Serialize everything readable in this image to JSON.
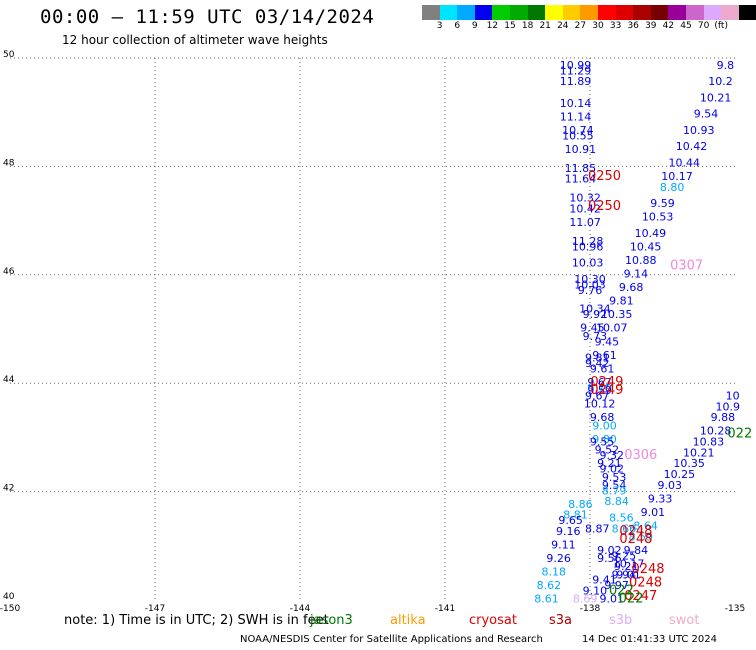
{
  "header": {
    "title": "00:00 – 11:59 UTC 03/14/2024",
    "subtitle": "12 hour collection of altimeter wave heights"
  },
  "colorbar": {
    "colors": [
      "#808080",
      "#00e5ff",
      "#00aaff",
      "#0000ee",
      "#00cc00",
      "#00aa00",
      "#007700",
      "#ffff00",
      "#ffcc00",
      "#ff9900",
      "#ff0000",
      "#dd0000",
      "#aa0000",
      "#770000",
      "#990099",
      "#cc66cc",
      "#ddaaff",
      "#eeaacc",
      "#000000"
    ],
    "labels": [
      "3",
      "6",
      "9",
      "12",
      "15",
      "18",
      "21",
      "24",
      "27",
      "30",
      "33",
      "36",
      "39",
      "42",
      "45",
      "70",
      "(ft)"
    ]
  },
  "footer": {
    "note": "note:  1) Time is in UTC;  2) SWH is in feet",
    "satellites": [
      {
        "name": "jason3",
        "color": "#007700"
      },
      {
        "name": "altika",
        "color": "#ff9900"
      },
      {
        "name": "cryosat",
        "color": "#dd0000"
      },
      {
        "name": "s3a",
        "color": "#aa0000"
      },
      {
        "name": "s3b",
        "color": "#ddaaff"
      },
      {
        "name": "swot",
        "color": "#eeaacc"
      }
    ],
    "credit": "NOAA/NESDIS Center for Satellite Applications and Research",
    "timestamp": "14 Dec 01:41:33 UTC 2024"
  },
  "chart_data": {
    "type": "scatter",
    "xlim": [
      -150,
      -135
    ],
    "ylim": [
      40,
      50
    ],
    "x_ticks": [
      -150,
      -147,
      -144,
      -141,
      -138,
      -135
    ],
    "x_tick_labels": [
      "-150",
      "-147",
      "-144",
      "-141",
      "-138",
      "-135"
    ],
    "y_ticks": [
      40,
      42,
      44,
      46,
      48,
      50
    ],
    "y_tick_labels": [
      "40",
      "42",
      "44",
      "46",
      "48",
      "50"
    ],
    "grid": true,
    "value_labels": [
      {
        "lon": -138.3,
        "lat": 49.8,
        "text": "10.99",
        "color": "#0000ee"
      },
      {
        "lon": -138.3,
        "lat": 49.7,
        "text": "11.29",
        "color": "#0000ee"
      },
      {
        "lon": -138.3,
        "lat": 49.5,
        "text": "11.89",
        "color": "#0000ee"
      },
      {
        "lon": -138.3,
        "lat": 49.1,
        "text": "10.14",
        "color": "#0000ee"
      },
      {
        "lon": -138.3,
        "lat": 48.85,
        "text": "11.14",
        "color": "#0000ee"
      },
      {
        "lon": -138.25,
        "lat": 48.6,
        "text": "10.74",
        "color": "#0000ee"
      },
      {
        "lon": -138.25,
        "lat": 48.5,
        "text": "10.55",
        "color": "#0000ee"
      },
      {
        "lon": -138.2,
        "lat": 48.25,
        "text": "10.91",
        "color": "#0000ee"
      },
      {
        "lon": -138.2,
        "lat": 47.9,
        "text": "11.85",
        "color": "#0000ee"
      },
      {
        "lon": -138.2,
        "lat": 47.7,
        "text": "11.64",
        "color": "#0000ee"
      },
      {
        "lon": -138.1,
        "lat": 47.35,
        "text": "10.32",
        "color": "#0000ee"
      },
      {
        "lon": -138.1,
        "lat": 47.15,
        "text": "10.42",
        "color": "#0000ee"
      },
      {
        "lon": -138.1,
        "lat": 46.9,
        "text": "11.07",
        "color": "#0000ee"
      },
      {
        "lon": -138.05,
        "lat": 46.55,
        "text": "11.28",
        "color": "#0000ee"
      },
      {
        "lon": -138.05,
        "lat": 46.45,
        "text": "10.96",
        "color": "#0000ee"
      },
      {
        "lon": -138.05,
        "lat": 46.15,
        "text": "10.03",
        "color": "#0000ee"
      },
      {
        "lon": -138.0,
        "lat": 45.85,
        "text": "10.30",
        "color": "#0000ee"
      },
      {
        "lon": -138.0,
        "lat": 45.75,
        "text": "10.03",
        "color": "#0000ee"
      },
      {
        "lon": -138.0,
        "lat": 45.65,
        "text": "9.76",
        "color": "#0000ee"
      },
      {
        "lon": -137.9,
        "lat": 45.3,
        "text": "10.34",
        "color": "#0000ee"
      },
      {
        "lon": -137.9,
        "lat": 45.2,
        "text": "9.92",
        "color": "#0000ee"
      },
      {
        "lon": -137.95,
        "lat": 44.95,
        "text": "9.45",
        "color": "#0000ee"
      },
      {
        "lon": -137.9,
        "lat": 44.8,
        "text": "9.73",
        "color": "#0000ee"
      },
      {
        "lon": -137.85,
        "lat": 44.4,
        "text": "9.81",
        "color": "#0000ee"
      },
      {
        "lon": -137.85,
        "lat": 44.3,
        "text": "9.42",
        "color": "#0000ee"
      },
      {
        "lon": -137.8,
        "lat": 43.85,
        "text": "9.79",
        "color": "#00aaff"
      },
      {
        "lon": -137.8,
        "lat": 43.8,
        "text": "9.59",
        "color": "#0000ee"
      },
      {
        "lon": -137.75,
        "lat": 43.3,
        "text": "9.68",
        "color": "#0000ee"
      },
      {
        "lon": -137.7,
        "lat": 43.15,
        "text": "9.00",
        "color": "#00aaff"
      },
      {
        "lon": -137.7,
        "lat": 42.9,
        "text": "9.80",
        "color": "#00aaff"
      },
      {
        "lon": -137.65,
        "lat": 42.7,
        "text": "9.52",
        "color": "#0000ee"
      },
      {
        "lon": -137.6,
        "lat": 42.45,
        "text": "9.21",
        "color": "#0000ee"
      },
      {
        "lon": -137.55,
        "lat": 42.35,
        "text": "9.02",
        "color": "#0000ee"
      },
      {
        "lon": -137.5,
        "lat": 42.2,
        "text": "9.53",
        "color": "#0000ee"
      },
      {
        "lon": -137.5,
        "lat": 42.05,
        "text": "9.54",
        "color": "#0000ee"
      },
      {
        "lon": -137.5,
        "lat": 41.95,
        "text": "8.79",
        "color": "#00aaff"
      },
      {
        "lon": -137.45,
        "lat": 41.75,
        "text": "8.84",
        "color": "#00aaff"
      },
      {
        "lon": -137.35,
        "lat": 41.45,
        "text": "8.56",
        "color": "#00aaff"
      },
      {
        "lon": -137.3,
        "lat": 41.25,
        "text": "8.66",
        "color": "#00aaff"
      },
      {
        "lon": -137.3,
        "lat": 40.75,
        "text": "9.25",
        "color": "#0000ee"
      },
      {
        "lon": -137.25,
        "lat": 40.55,
        "text": "9.21",
        "color": "#0000ee"
      },
      {
        "lon": -137.2,
        "lat": 40.4,
        "text": "9.01",
        "color": "#0000ee"
      },
      {
        "lon": -138.2,
        "lat": 41.7,
        "text": "8.86",
        "color": "#00aaff"
      },
      {
        "lon": -138.3,
        "lat": 41.5,
        "text": "8.81",
        "color": "#00aaff"
      },
      {
        "lon": -138.4,
        "lat": 41.4,
        "text": "9.65",
        "color": "#0000ee"
      },
      {
        "lon": -138.45,
        "lat": 41.2,
        "text": "9.16",
        "color": "#0000ee"
      },
      {
        "lon": -138.55,
        "lat": 40.95,
        "text": "9.11",
        "color": "#0000ee"
      },
      {
        "lon": -138.65,
        "lat": 40.7,
        "text": "9.26",
        "color": "#0000ee"
      },
      {
        "lon": -138.75,
        "lat": 40.45,
        "text": "8.18",
        "color": "#00aaff"
      },
      {
        "lon": -138.85,
        "lat": 40.2,
        "text": "8.62",
        "color": "#00aaff"
      },
      {
        "lon": -138.9,
        "lat": 39.95,
        "text": "8.61",
        "color": "#00aaff"
      },
      {
        "lon": -137.85,
        "lat": 41.25,
        "text": "8.87",
        "color": "#0000ee"
      },
      {
        "lon": -137.6,
        "lat": 40.85,
        "text": "9.02",
        "color": "#0000ee"
      },
      {
        "lon": -137.6,
        "lat": 40.7,
        "text": "9.56",
        "color": "#0000ee"
      },
      {
        "lon": -137.7,
        "lat": 40.3,
        "text": "9.41",
        "color": "#0000ee"
      },
      {
        "lon": -137.9,
        "lat": 40.1,
        "text": "9.10",
        "color": "#0000ee"
      },
      {
        "lon": -138.1,
        "lat": 39.95,
        "text": "8.69",
        "color": "#ddaaff"
      },
      {
        "lon": -135.2,
        "lat": 49.8,
        "text": "9.8",
        "color": "#0000ee"
      },
      {
        "lon": -135.3,
        "lat": 49.5,
        "text": "10.2",
        "color": "#0000ee"
      },
      {
        "lon": -135.4,
        "lat": 49.2,
        "text": "10.21",
        "color": "#0000ee"
      },
      {
        "lon": -135.6,
        "lat": 48.9,
        "text": "9.54",
        "color": "#0000ee"
      },
      {
        "lon": -135.75,
        "lat": 48.6,
        "text": "10.93",
        "color": "#0000ee"
      },
      {
        "lon": -135.9,
        "lat": 48.3,
        "text": "10.42",
        "color": "#0000ee"
      },
      {
        "lon": -136.05,
        "lat": 48.0,
        "text": "10.44",
        "color": "#0000ee"
      },
      {
        "lon": -136.2,
        "lat": 47.75,
        "text": "10.17",
        "color": "#0000ee"
      },
      {
        "lon": -136.3,
        "lat": 47.55,
        "text": "8.80",
        "color": "#00aaff"
      },
      {
        "lon": -136.5,
        "lat": 47.25,
        "text": "9.59",
        "color": "#0000ee"
      },
      {
        "lon": -136.6,
        "lat": 47.0,
        "text": "10.53",
        "color": "#0000ee"
      },
      {
        "lon": -136.75,
        "lat": 46.7,
        "text": "10.49",
        "color": "#0000ee"
      },
      {
        "lon": -136.85,
        "lat": 46.45,
        "text": "10.45",
        "color": "#0000ee"
      },
      {
        "lon": -136.95,
        "lat": 46.2,
        "text": "10.88",
        "color": "#0000ee"
      },
      {
        "lon": -137.05,
        "lat": 45.95,
        "text": "9.14",
        "color": "#0000ee"
      },
      {
        "lon": -137.15,
        "lat": 45.7,
        "text": "9.68",
        "color": "#0000ee"
      },
      {
        "lon": -137.35,
        "lat": 45.45,
        "text": "9.81",
        "color": "#0000ee"
      },
      {
        "lon": -137.45,
        "lat": 45.2,
        "text": "10.35",
        "color": "#0000ee"
      },
      {
        "lon": -137.55,
        "lat": 44.95,
        "text": "10.07",
        "color": "#0000ee"
      },
      {
        "lon": -137.65,
        "lat": 44.7,
        "text": "9.45",
        "color": "#0000ee"
      },
      {
        "lon": -137.7,
        "lat": 44.45,
        "text": "9.61",
        "color": "#0000ee"
      },
      {
        "lon": -137.75,
        "lat": 44.2,
        "text": "9.61",
        "color": "#0000ee"
      },
      {
        "lon": -137.8,
        "lat": 43.95,
        "text": "9.67",
        "color": "#0000ee"
      },
      {
        "lon": -137.85,
        "lat": 43.7,
        "text": "9.67",
        "color": "#0000ee"
      },
      {
        "lon": -137.8,
        "lat": 43.55,
        "text": "10.12",
        "color": "#0000ee"
      },
      {
        "lon": -137.75,
        "lat": 42.85,
        "text": "9.55",
        "color": "#0000ee"
      },
      {
        "lon": -137.55,
        "lat": 42.6,
        "text": "9.32",
        "color": "#0000ee"
      },
      {
        "lon": -135.05,
        "lat": 43.7,
        "text": "10",
        "color": "#0000ee"
      },
      {
        "lon": -135.15,
        "lat": 43.5,
        "text": "10.9",
        "color": "#0000ee"
      },
      {
        "lon": -135.25,
        "lat": 43.3,
        "text": "9.88",
        "color": "#0000ee"
      },
      {
        "lon": -135.4,
        "lat": 43.05,
        "text": "10.28",
        "color": "#0000ee"
      },
      {
        "lon": -135.55,
        "lat": 42.85,
        "text": "10.83",
        "color": "#0000ee"
      },
      {
        "lon": -135.75,
        "lat": 42.65,
        "text": "10.21",
        "color": "#0000ee"
      },
      {
        "lon": -135.95,
        "lat": 42.45,
        "text": "10.35",
        "color": "#0000ee"
      },
      {
        "lon": -136.15,
        "lat": 42.25,
        "text": "10.25",
        "color": "#0000ee"
      },
      {
        "lon": -136.35,
        "lat": 42.05,
        "text": "9.03",
        "color": "#0000ee"
      },
      {
        "lon": -136.55,
        "lat": 41.8,
        "text": "9.33",
        "color": "#0000ee"
      },
      {
        "lon": -136.7,
        "lat": 41.55,
        "text": "9.01",
        "color": "#0000ee"
      },
      {
        "lon": -136.85,
        "lat": 41.3,
        "text": "8.64",
        "color": "#00aaff"
      },
      {
        "lon": -136.95,
        "lat": 41.1,
        "text": "8.59",
        "color": "#00aaff"
      },
      {
        "lon": -137.05,
        "lat": 40.85,
        "text": "9.84",
        "color": "#0000ee"
      },
      {
        "lon": -137.2,
        "lat": 40.6,
        "text": "10.17",
        "color": "#0000ee"
      },
      {
        "lon": -137.3,
        "lat": 40.4,
        "text": "9.94",
        "color": "#0000ee"
      },
      {
        "lon": -137.45,
        "lat": 40.2,
        "text": "9.97",
        "color": "#0000ee"
      },
      {
        "lon": -137.55,
        "lat": 39.95,
        "text": "9.01",
        "color": "#0000ee"
      }
    ],
    "time_labels": [
      {
        "lon": -137.7,
        "lat": 47.75,
        "text": "0250",
        "color": "#dd0000"
      },
      {
        "lon": -137.7,
        "lat": 47.2,
        "text": "0250",
        "color": "#dd0000"
      },
      {
        "lon": -137.65,
        "lat": 43.95,
        "text": "0249",
        "color": "#dd0000"
      },
      {
        "lon": -137.65,
        "lat": 43.8,
        "text": "0249",
        "color": "#dd0000"
      },
      {
        "lon": -137.05,
        "lat": 41.2,
        "text": "0248",
        "color": "#dd0000"
      },
      {
        "lon": -137.05,
        "lat": 41.05,
        "text": "0248",
        "color": "#dd0000"
      },
      {
        "lon": -136.8,
        "lat": 40.5,
        "text": "0248",
        "color": "#dd0000"
      },
      {
        "lon": -136.85,
        "lat": 40.25,
        "text": "0248",
        "color": "#dd0000"
      },
      {
        "lon": -136.95,
        "lat": 40.0,
        "text": "0247",
        "color": "#dd0000"
      },
      {
        "lon": -136.0,
        "lat": 46.1,
        "text": "0307",
        "color": "#ee88dd"
      },
      {
        "lon": -136.95,
        "lat": 42.6,
        "text": "0306",
        "color": "#ee88dd"
      },
      {
        "lon": -134.9,
        "lat": 43.0,
        "text": "022",
        "color": "#007700"
      },
      {
        "lon": -137.35,
        "lat": 40.1,
        "text": "022",
        "color": "#007700"
      },
      {
        "lon": -137.15,
        "lat": 39.95,
        "text": "022",
        "color": "#007700"
      }
    ]
  }
}
